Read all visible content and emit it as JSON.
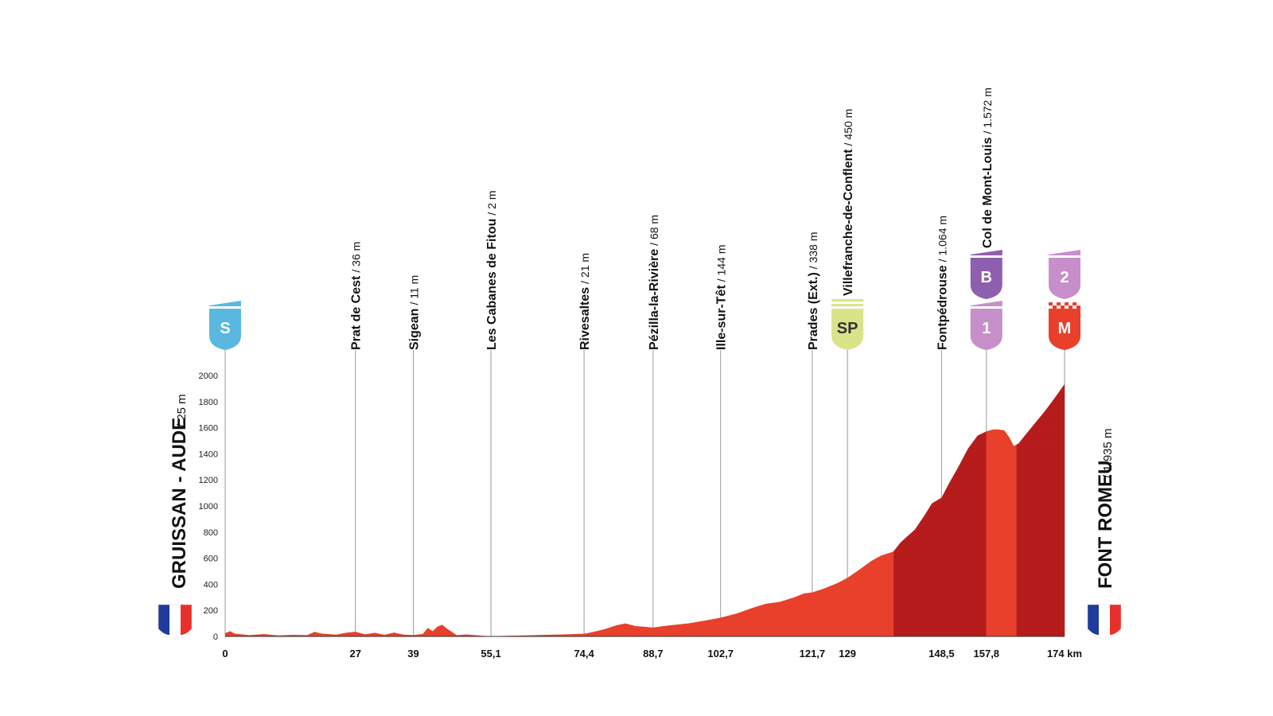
{
  "start": {
    "name": "GRUISSAN - AUDE",
    "altitude": "/ 25 m",
    "flag": "france-flag"
  },
  "finish": {
    "name": "FONT ROMEU",
    "altitude": "/ 1.935 m",
    "flag": "france-flag"
  },
  "colors": {
    "profile_light": "#e8402a",
    "profile_dark": "#b71c1c",
    "sprint": "#d9e38a",
    "start_badge": "#5ab8e0",
    "climb_cat1": "#c78fc9",
    "climb_b": "#8e5fae",
    "finish_badge": "#e8402a"
  },
  "chart_data": {
    "type": "area",
    "xlabel": "",
    "ylabel": "",
    "xlim": [
      0,
      174
    ],
    "ylim": [
      0,
      2000
    ],
    "yticks": [
      0,
      200,
      400,
      600,
      800,
      1000,
      1200,
      1400,
      1600,
      1800,
      2000
    ],
    "x_unit": "km",
    "grid": false,
    "profile": [
      [
        0,
        25
      ],
      [
        1,
        40
      ],
      [
        2,
        22
      ],
      [
        5,
        10
      ],
      [
        8,
        18
      ],
      [
        11,
        8
      ],
      [
        14,
        12
      ],
      [
        17,
        10
      ],
      [
        18.5,
        35
      ],
      [
        20,
        22
      ],
      [
        23,
        14
      ],
      [
        25,
        28
      ],
      [
        27,
        36
      ],
      [
        29,
        16
      ],
      [
        31,
        28
      ],
      [
        33,
        12
      ],
      [
        35,
        30
      ],
      [
        37,
        14
      ],
      [
        39,
        11
      ],
      [
        41,
        20
      ],
      [
        42,
        65
      ],
      [
        43,
        40
      ],
      [
        44,
        75
      ],
      [
        45,
        90
      ],
      [
        46,
        60
      ],
      [
        48,
        10
      ],
      [
        50,
        15
      ],
      [
        53,
        6
      ],
      [
        55.1,
        2
      ],
      [
        58,
        5
      ],
      [
        62,
        8
      ],
      [
        66,
        12
      ],
      [
        70,
        15
      ],
      [
        74.4,
        21
      ],
      [
        76,
        32
      ],
      [
        79,
        60
      ],
      [
        81,
        85
      ],
      [
        83,
        100
      ],
      [
        85,
        80
      ],
      [
        88.7,
        68
      ],
      [
        92,
        85
      ],
      [
        96,
        100
      ],
      [
        100,
        125
      ],
      [
        102.7,
        144
      ],
      [
        106,
        175
      ],
      [
        109,
        215
      ],
      [
        112,
        250
      ],
      [
        115,
        265
      ],
      [
        118,
        300
      ],
      [
        120,
        330
      ],
      [
        121.7,
        338
      ],
      [
        124,
        365
      ],
      [
        127,
        410
      ],
      [
        129,
        450
      ],
      [
        131,
        500
      ],
      [
        134,
        580
      ],
      [
        136,
        620
      ],
      [
        138.5,
        650
      ],
      [
        140,
        720
      ],
      [
        143,
        820
      ],
      [
        145,
        930
      ],
      [
        146.5,
        1020
      ],
      [
        148.5,
        1064
      ],
      [
        150,
        1170
      ],
      [
        152,
        1300
      ],
      [
        154,
        1440
      ],
      [
        156,
        1540
      ],
      [
        157.8,
        1572
      ],
      [
        159,
        1585
      ],
      [
        160,
        1588
      ],
      [
        161.5,
        1580
      ],
      [
        162.5,
        1530
      ],
      [
        163.5,
        1460
      ],
      [
        164.5,
        1480
      ],
      [
        166,
        1550
      ],
      [
        168,
        1640
      ],
      [
        170,
        1730
      ],
      [
        172,
        1830
      ],
      [
        174,
        1935
      ]
    ],
    "shading": [
      {
        "from": 0,
        "to": 138.5,
        "tone": "light"
      },
      {
        "from": 138.5,
        "to": 157.8,
        "tone": "dark"
      },
      {
        "from": 157.8,
        "to": 164,
        "tone": "light"
      },
      {
        "from": 164,
        "to": 174,
        "tone": "dark"
      }
    ],
    "x_tick_labels": [
      {
        "km": 0,
        "label": "0"
      },
      {
        "km": 27,
        "label": "27"
      },
      {
        "km": 39,
        "label": "39"
      },
      {
        "km": 55.1,
        "label": "55,1"
      },
      {
        "km": 74.4,
        "label": "74,4"
      },
      {
        "km": 88.7,
        "label": "88,7"
      },
      {
        "km": 102.7,
        "label": "102,7"
      },
      {
        "km": 121.7,
        "label": "121,7"
      },
      {
        "km": 129,
        "label": "129"
      },
      {
        "km": 148.5,
        "label": "148,5"
      },
      {
        "km": 157.8,
        "label": "157,8"
      },
      {
        "km": 174,
        "label": "174 km"
      }
    ],
    "waypoints": [
      {
        "km": 27,
        "name": "Prat de Cest",
        "alt": "/ 36 m"
      },
      {
        "km": 39,
        "name": "Sigean",
        "alt": "/ 11 m"
      },
      {
        "km": 55.1,
        "name": "Les Cabanes de Fitou",
        "alt": "/ 2 m"
      },
      {
        "km": 74.4,
        "name": "Rivesaltes",
        "alt": "/ 21 m"
      },
      {
        "km": 88.7,
        "name": "Pézilla-la-Rivière",
        "alt": "/ 68 m"
      },
      {
        "km": 102.7,
        "name": "Ille-sur-Têt",
        "alt": "/ 144 m"
      },
      {
        "km": 121.7,
        "name": "Prades (Ext.)",
        "alt": "/ 338 m"
      },
      {
        "km": 129,
        "name": "Villefranche-de-Conflent",
        "alt": "/ 450 m"
      },
      {
        "km": 148.5,
        "name": "Fontpédrouse",
        "alt": "/ 1.064 m"
      },
      {
        "km": 157.8,
        "name": "Col de Mont-Louis",
        "alt": "/ 1.572 m"
      }
    ],
    "badges": [
      {
        "km": 0,
        "label": "S",
        "kind": "start",
        "row": 0
      },
      {
        "km": 129,
        "label": "SP",
        "kind": "sprint",
        "row": 0
      },
      {
        "km": 157.8,
        "label": "1",
        "kind": "climb1",
        "row": 0
      },
      {
        "km": 157.8,
        "label": "B",
        "kind": "bonus",
        "row": 1
      },
      {
        "km": 174,
        "label": "M",
        "kind": "finish",
        "row": 0
      },
      {
        "km": 174,
        "label": "2",
        "kind": "climb1",
        "row": 1
      }
    ]
  }
}
